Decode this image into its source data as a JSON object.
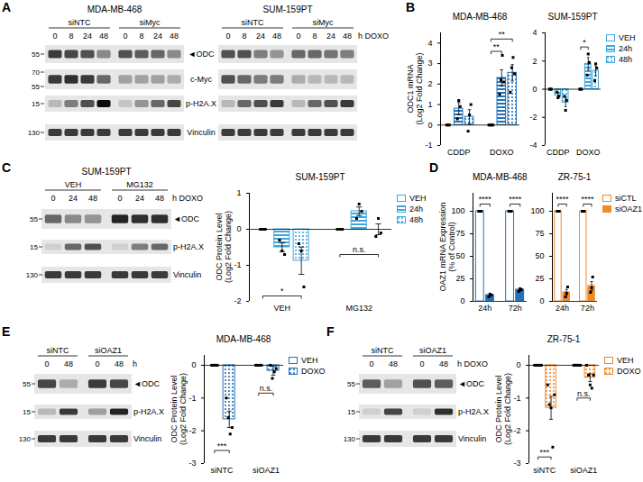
{
  "chart_data": [
    {
      "type": "blot",
      "panel": "A",
      "groups": [
        {
          "title": "MDA-MB-468",
          "conditions": [
            {
              "label": "siNTC",
              "lanes": [
                0,
                8,
                24,
                48
              ]
            },
            {
              "label": "siMyc",
              "lanes": [
                0,
                8,
                24,
                48
              ]
            }
          ]
        },
        {
          "title": "SUM-159PT",
          "conditions": [
            {
              "label": "siNTC",
              "lanes": [
                0,
                8,
                24,
                48
              ]
            },
            {
              "label": "siMyc",
              "lanes": [
                0,
                8,
                24,
                48
              ]
            }
          ]
        }
      ],
      "lane_label": "h DOXO",
      "rows": [
        {
          "label": "◄ODC",
          "mw": [
            55
          ],
          "bands": [
            0.8,
            0.75,
            0.7,
            0.45,
            0.7,
            0.65,
            0.6,
            0.45,
            0.7,
            0.7,
            0.5,
            0.4,
            0.6,
            0.6,
            0.55,
            0.5
          ]
        },
        {
          "label": "c-Myc",
          "mw": [
            70,
            55
          ],
          "bands": [
            0.8,
            0.85,
            0.8,
            0.6,
            0.3,
            0.3,
            0.3,
            0.25,
            0.7,
            0.6,
            0.5,
            0.5,
            0.25,
            0.2,
            0.2,
            0.2
          ]
        },
        {
          "label": "p-H2A.X",
          "mw": [
            15
          ],
          "bands": [
            0.2,
            0.5,
            0.7,
            1.0,
            0.15,
            0.4,
            0.6,
            0.75,
            0.2,
            0.6,
            0.7,
            0.8,
            0.2,
            0.6,
            0.7,
            0.8
          ]
        },
        {
          "label": "Vinculin",
          "mw": [
            130
          ],
          "bands": [
            0.8,
            0.8,
            0.8,
            0.8,
            0.8,
            0.8,
            0.8,
            0.8,
            0.8,
            0.8,
            0.8,
            0.8,
            0.8,
            0.8,
            0.8,
            0.8
          ]
        }
      ]
    },
    {
      "type": "bar",
      "panel": "B",
      "title": "MDA-MB-468",
      "ylabel": "ODC1 mRNA (Log2 Fold Change)",
      "categories": [
        "CDDP",
        "DOXO"
      ],
      "series": [
        {
          "name": "VEH",
          "color": "#2372b9",
          "marker": "open",
          "values": [
            0,
            0
          ],
          "errors": [
            0,
            0
          ],
          "points": [
            [
              0,
              0,
              0
            ],
            [
              0,
              0,
              0,
              0
            ]
          ]
        },
        {
          "name": "24h",
          "color": "#2372b9",
          "marker": "stripes",
          "values": [
            0.8,
            2.3
          ],
          "errors": [
            0.3,
            0.4
          ],
          "points": [
            [
              0.3,
              1.2,
              0.9
            ],
            [
              1.5,
              2.2,
              3.4,
              2.1
            ]
          ]
        },
        {
          "name": "48h",
          "color": "#2372b9",
          "marker": "dots",
          "values": [
            0.4,
            2.55
          ],
          "errors": [
            0.35,
            0.4
          ],
          "points": [
            [
              -0.3,
              0.5,
              1.0
            ],
            [
              1.6,
              2.8,
              3.3,
              2.5
            ]
          ]
        }
      ],
      "ylim": [
        -1,
        4.5
      ],
      "yticks": [
        -1,
        0,
        1,
        2,
        3,
        4
      ],
      "annotations": [
        {
          "text": "**",
          "category": "DOXO",
          "from": "VEH",
          "to": "24h",
          "y": 3.6
        },
        {
          "text": "**",
          "category": "DOXO",
          "from": "VEH",
          "to": "48h",
          "y": 4.2
        }
      ]
    },
    {
      "type": "bar",
      "title": "SUM-159PT",
      "categories": [
        "CDDP",
        "DOXO"
      ],
      "series": [
        {
          "name": "VEH",
          "color": "#3fa6dc",
          "marker": "open",
          "values": [
            0,
            0
          ],
          "errors": [
            0,
            0
          ],
          "points": [
            [
              0,
              0,
              0
            ],
            [
              0,
              0,
              0
            ]
          ]
        },
        {
          "name": "24h",
          "color": "#3fa6dc",
          "marker": "stripes",
          "values": [
            -0.45,
            1.8
          ],
          "errors": [
            0.2,
            0.45
          ],
          "points": [
            [
              -0.2,
              -0.6,
              -0.5
            ],
            [
              1.0,
              2.5,
              1.9
            ]
          ]
        },
        {
          "name": "48h",
          "color": "#3fa6dc",
          "marker": "dots",
          "values": [
            -0.95,
            1.3
          ],
          "errors": [
            0.3,
            0.35
          ],
          "points": [
            [
              -0.5,
              -1.5,
              -0.8
            ],
            [
              0.6,
              1.8,
              1.5
            ]
          ]
        }
      ],
      "ylim": [
        -4,
        4
      ],
      "yticks": [
        -4,
        -2,
        0,
        2,
        4
      ],
      "legend": "right",
      "annotations": [
        {
          "text": "*",
          "category": "DOXO",
          "from": "VEH",
          "to": "24h",
          "y": 3.0
        }
      ]
    },
    {
      "type": "blot",
      "panel": "C",
      "groups": [
        {
          "title": "SUM-159PT",
          "conditions": [
            {
              "label": "VEH",
              "lanes": [
                0,
                24,
                48
              ]
            },
            {
              "label": "MG132",
              "lanes": [
                0,
                24,
                48
              ]
            }
          ]
        }
      ],
      "lane_label": "h DOXO",
      "rows": [
        {
          "label": "◄ODC",
          "mw": [
            55
          ],
          "bands": [
            0.6,
            0.45,
            0.4,
            0.9,
            0.85,
            0.85
          ]
        },
        {
          "label": "p-H2A.X",
          "mw": [
            15
          ],
          "bands": [
            0.1,
            0.6,
            0.7,
            0.1,
            0.5,
            0.6
          ]
        },
        {
          "label": "Vinculin",
          "mw": [
            130
          ],
          "bands": [
            0.8,
            0.8,
            0.8,
            0.8,
            0.8,
            0.8
          ]
        }
      ]
    },
    {
      "type": "bar",
      "title": "SUM-159PT",
      "ylabel": "ODC Protein Level (Log2 Fold Change)",
      "categories": [
        "VEH",
        "MG132"
      ],
      "series": [
        {
          "name": "VEH",
          "color": "#3fa6dc",
          "marker": "open",
          "values": [
            0,
            0
          ],
          "errors": [
            0,
            0
          ],
          "points": [
            [
              0,
              0,
              0
            ],
            [
              0,
              0,
              0
            ]
          ]
        },
        {
          "name": "24h",
          "color": "#3fa6dc",
          "marker": "stripes",
          "values": [
            -0.5,
            0.5
          ],
          "errors": [
            0.12,
            0.12
          ],
          "points": [
            [
              -0.3,
              -0.6,
              -0.7
            ],
            [
              0.3,
              0.7,
              0.5
            ]
          ]
        },
        {
          "name": "48h",
          "color": "#3fa6dc",
          "marker": "dots",
          "values": [
            -0.87,
            0.0
          ],
          "errors": [
            0.38,
            0.15
          ],
          "points": [
            [
              -0.4,
              -0.6,
              -1.6
            ],
            [
              -0.2,
              0.3,
              -0.1
            ]
          ]
        }
      ],
      "ylim": [
        -2,
        1
      ],
      "yticks": [
        -2,
        -1,
        0,
        1
      ],
      "legend": "right",
      "annotations": [
        {
          "text": "*",
          "category": "VEH",
          "from": "VEH",
          "to": "48h",
          "y": -1.85
        },
        {
          "text": "n.s.",
          "category": "MG132",
          "from": "VEH",
          "to": "48h",
          "y": -0.7
        }
      ]
    },
    {
      "type": "bar",
      "panel": "D",
      "title": "MDA-MB-468",
      "ylabel": "OAZ1 mRNA Expression (% of Control)",
      "categories": [
        "24h",
        "72h"
      ],
      "series": [
        {
          "name": "siCTL",
          "color": "#2372b9",
          "marker": "open",
          "values": [
            100,
            100
          ],
          "errors": [
            0,
            0
          ],
          "points": [
            [
              100,
              100,
              100
            ],
            [
              100,
              100,
              100
            ]
          ]
        },
        {
          "name": "siOAZ1",
          "color": "#2372b9",
          "marker": "solid",
          "values": [
            7,
            13
          ],
          "errors": [
            1.5,
            1.5
          ],
          "points": [
            [
              5,
              8,
              7
            ],
            [
              11,
              14,
              13
            ]
          ]
        }
      ],
      "ylim": [
        0,
        120
      ],
      "yticks": [
        0,
        25,
        50,
        75,
        100
      ],
      "annotations": [
        {
          "text": "****",
          "category": "24h",
          "from": "siCTL",
          "to": "siOAZ1",
          "y": 108
        },
        {
          "text": "****",
          "category": "72h",
          "from": "siCTL",
          "to": "siOAZ1",
          "y": 108
        }
      ]
    },
    {
      "type": "bar",
      "title": "ZR-75-1",
      "categories": [
        "24h",
        "72h"
      ],
      "series": [
        {
          "name": "siCTL",
          "color": "#f08a2b",
          "marker": "open",
          "values": [
            100,
            100
          ],
          "errors": [
            0,
            0
          ],
          "points": [
            [
              100,
              100,
              100
            ],
            [
              100,
              100,
              100
            ]
          ]
        },
        {
          "name": "siOAZ1",
          "color": "#f08a2b",
          "marker": "solid",
          "values": [
            10,
            17
          ],
          "errors": [
            3.3,
            5
          ],
          "points": [
            [
              5,
              9,
              16
            ],
            [
              10,
              15,
              27
            ]
          ]
        }
      ],
      "ylim": [
        0,
        120
      ],
      "yticks": [
        0,
        25,
        50,
        75,
        100
      ],
      "legend": "right",
      "annotations": [
        {
          "text": "****",
          "category": "24h",
          "from": "siCTL",
          "to": "siOAZ1",
          "y": 108
        },
        {
          "text": "****",
          "category": "72h",
          "from": "siCTL",
          "to": "siOAZ1",
          "y": 108
        }
      ]
    },
    {
      "type": "blot",
      "panel": "E",
      "groups": [
        {
          "conditions": [
            {
              "label": "siNTC",
              "lanes": [
                0,
                48
              ]
            },
            {
              "label": "siOAZ1",
              "lanes": [
                0,
                48
              ]
            }
          ]
        }
      ],
      "lane_label": "h",
      "rows": [
        {
          "label": "◄ODC",
          "mw": [
            55
          ],
          "bands": [
            0.75,
            0.25,
            0.8,
            0.75
          ]
        },
        {
          "label": "p-H2A.X",
          "mw": [
            15
          ],
          "bands": [
            0.2,
            0.8,
            0.35,
            0.9
          ]
        },
        {
          "label": "Vinculin",
          "mw": [
            130
          ],
          "bands": [
            0.8,
            0.8,
            0.8,
            0.8
          ]
        }
      ]
    },
    {
      "type": "bar",
      "title": "MDA-MB-468",
      "ylabel": "ODC Protein Level (Log2 Fold Change)",
      "categories": [
        "siNTC",
        "siOAZ1"
      ],
      "series": [
        {
          "name": "VEH",
          "color": "#2372b9",
          "marker": "open",
          "values": [
            0,
            0
          ],
          "errors": [
            0,
            0
          ],
          "points": [
            [
              0,
              0,
              0,
              0
            ],
            [
              0,
              0,
              0,
              0
            ]
          ]
        },
        {
          "name": "DOXO",
          "color": "#2372b9",
          "marker": "dots",
          "values": [
            -1.65,
            -0.17
          ],
          "errors": [
            0.25,
            0.13
          ],
          "points": [
            [
              -1.0,
              -1.6,
              -2.1,
              -1.9
            ],
            [
              0.0,
              -0.4,
              -0.2,
              -0.1
            ]
          ]
        }
      ],
      "ylim": [
        -3,
        0.3
      ],
      "yticks": [
        -3,
        -2,
        -1,
        0
      ],
      "legend": "right",
      "annotations": [
        {
          "text": "***",
          "category": "siNTC",
          "from": "VEH",
          "to": "DOXO",
          "y": -2.6
        },
        {
          "text": "n.s.",
          "category": "siOAZ1",
          "from": "VEH",
          "to": "DOXO",
          "y": -0.85
        }
      ]
    },
    {
      "type": "blot",
      "panel": "F",
      "groups": [
        {
          "conditions": [
            {
              "label": "siNTC",
              "lanes": [
                0,
                48
              ]
            },
            {
              "label": "siOAZ1",
              "lanes": [
                0,
                48
              ]
            }
          ]
        }
      ],
      "lane_label": "h DOXO",
      "rows": [
        {
          "label": "◄ODC",
          "mw": [
            55
          ],
          "bands": [
            0.65,
            0.3,
            0.7,
            0.65
          ]
        },
        {
          "label": "p-H2A.X",
          "mw": [
            15
          ],
          "bands": [
            0.1,
            0.75,
            0.1,
            0.85
          ]
        },
        {
          "label": "Vinculin",
          "mw": [
            130
          ],
          "bands": [
            0.8,
            0.8,
            0.8,
            0.8
          ]
        }
      ]
    },
    {
      "type": "bar",
      "title": "ZR-75-1",
      "ylabel": "ODC Protein Level (Log2 Fold Change)",
      "categories": [
        "siNTC",
        "siOAZ1"
      ],
      "series": [
        {
          "name": "VEH",
          "color": "#f08a2b",
          "marker": "open",
          "values": [
            0,
            0
          ],
          "errors": [
            0,
            0
          ],
          "points": [
            [
              0,
              0,
              0,
              0,
              0
            ],
            [
              0,
              0,
              0,
              0,
              0
            ]
          ]
        },
        {
          "name": "DOXO",
          "color": "#f08a2b",
          "marker": "dots",
          "values": [
            -1.3,
            -0.38
          ],
          "errors": [
            0.35,
            0.12
          ],
          "points": [
            [
              -0.6,
              -1.2,
              -1.3,
              -2.5,
              -0.9
            ],
            [
              0.0,
              -0.3,
              -0.6,
              -0.7,
              -0.3
            ]
          ]
        }
      ],
      "ylim": [
        -3,
        0.3
      ],
      "yticks": [
        -3,
        -2,
        -1,
        0
      ],
      "legend": "right",
      "annotations": [
        {
          "text": "***",
          "category": "siNTC",
          "from": "VEH",
          "to": "DOXO",
          "y": -2.8
        },
        {
          "text": "n.s.",
          "category": "siOAZ1",
          "from": "VEH",
          "to": "DOXO",
          "y": -1.0
        }
      ]
    }
  ]
}
